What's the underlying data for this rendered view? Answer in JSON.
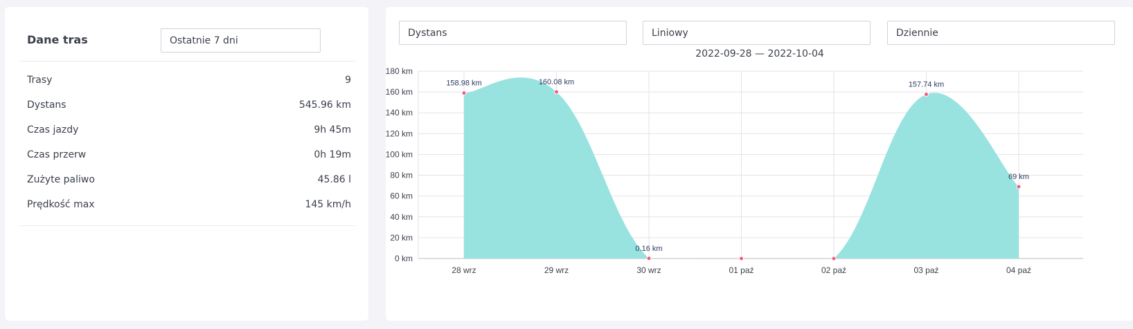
{
  "left_panel": {
    "title": "Dane tras",
    "period_select": "Ostatnie 7 dni",
    "stats": [
      {
        "label": "Trasy",
        "value": "9"
      },
      {
        "label": "Dystans",
        "value": "545.96 km"
      },
      {
        "label": "Czas jazdy",
        "value": "9h 45m"
      },
      {
        "label": "Czas przerw",
        "value": "0h 19m"
      },
      {
        "label": "Zużyte paliwo",
        "value": "45.86 l"
      },
      {
        "label": "Prędkość max",
        "value": "145 km/h"
      }
    ]
  },
  "right_panel": {
    "metric_select": "Dystans",
    "chart_type_select": "Liniowy",
    "interval_select": "Dziennie",
    "date_range": "2022-09-28 — 2022-10-04"
  },
  "colors": {
    "area_fill": "#98e2e0",
    "point": "#f25b7d",
    "grid": "#e3e3e3",
    "axis": "#bdbdbd",
    "label": "#2b3a63"
  },
  "chart_data": {
    "type": "area",
    "categories": [
      "28 wrz",
      "29 wrz",
      "30 wrz",
      "01 paź",
      "02 paź",
      "03 paź",
      "04 paź"
    ],
    "values": [
      158.98,
      160.08,
      0.16,
      0,
      0,
      157.74,
      69
    ],
    "data_labels": [
      "158.98 km",
      "160.08 km",
      "0.16 km",
      "",
      "",
      "157.74 km",
      "69 km"
    ],
    "y_ticks": [
      "0 km",
      "20 km",
      "40 km",
      "60 km",
      "80 km",
      "100 km",
      "120 km",
      "140 km",
      "160 km",
      "180 km"
    ],
    "ylim": [
      0,
      180
    ],
    "title": "",
    "xlabel": "",
    "ylabel": "",
    "grid": true
  }
}
